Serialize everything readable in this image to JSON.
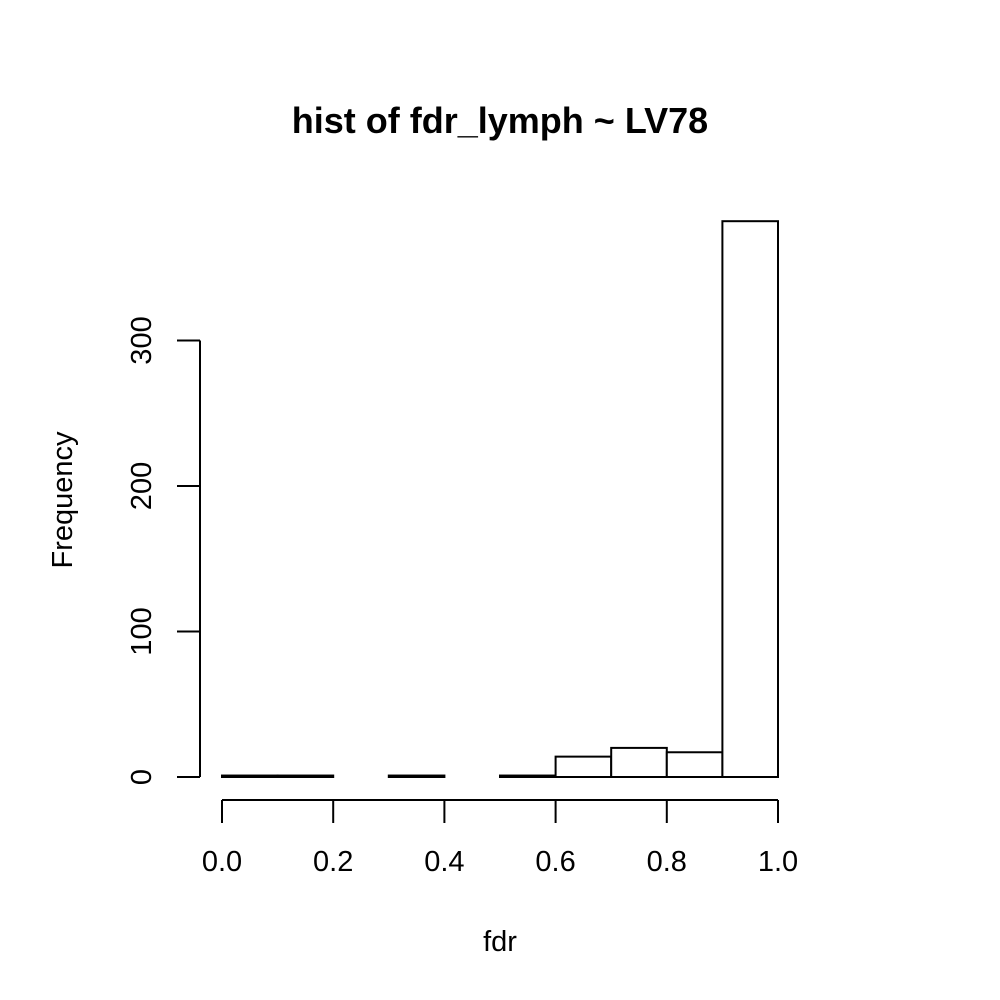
{
  "chart_data": {
    "type": "bar",
    "title": "hist of fdr_lymph ~ LV78",
    "xlabel": "fdr",
    "ylabel": "Frequency",
    "bins": [
      {
        "start": 0.0,
        "end": 0.1,
        "count": 1
      },
      {
        "start": 0.1,
        "end": 0.2,
        "count": 1
      },
      {
        "start": 0.2,
        "end": 0.3,
        "count": 0
      },
      {
        "start": 0.3,
        "end": 0.4,
        "count": 1
      },
      {
        "start": 0.4,
        "end": 0.5,
        "count": 0
      },
      {
        "start": 0.5,
        "end": 0.6,
        "count": 1
      },
      {
        "start": 0.6,
        "end": 0.7,
        "count": 14
      },
      {
        "start": 0.7,
        "end": 0.8,
        "count": 20
      },
      {
        "start": 0.8,
        "end": 0.9,
        "count": 17
      },
      {
        "start": 0.9,
        "end": 1.0,
        "count": 382
      }
    ],
    "xticks": [
      "0.0",
      "0.2",
      "0.4",
      "0.6",
      "0.8",
      "1.0"
    ],
    "yticks": [
      "0",
      "100",
      "200",
      "300"
    ],
    "xlim": [
      0,
      1
    ],
    "ylim": [
      0,
      382
    ],
    "grid": false,
    "colors": {
      "bar_fill": "#ffffff",
      "bar_stroke": "#000000"
    }
  }
}
